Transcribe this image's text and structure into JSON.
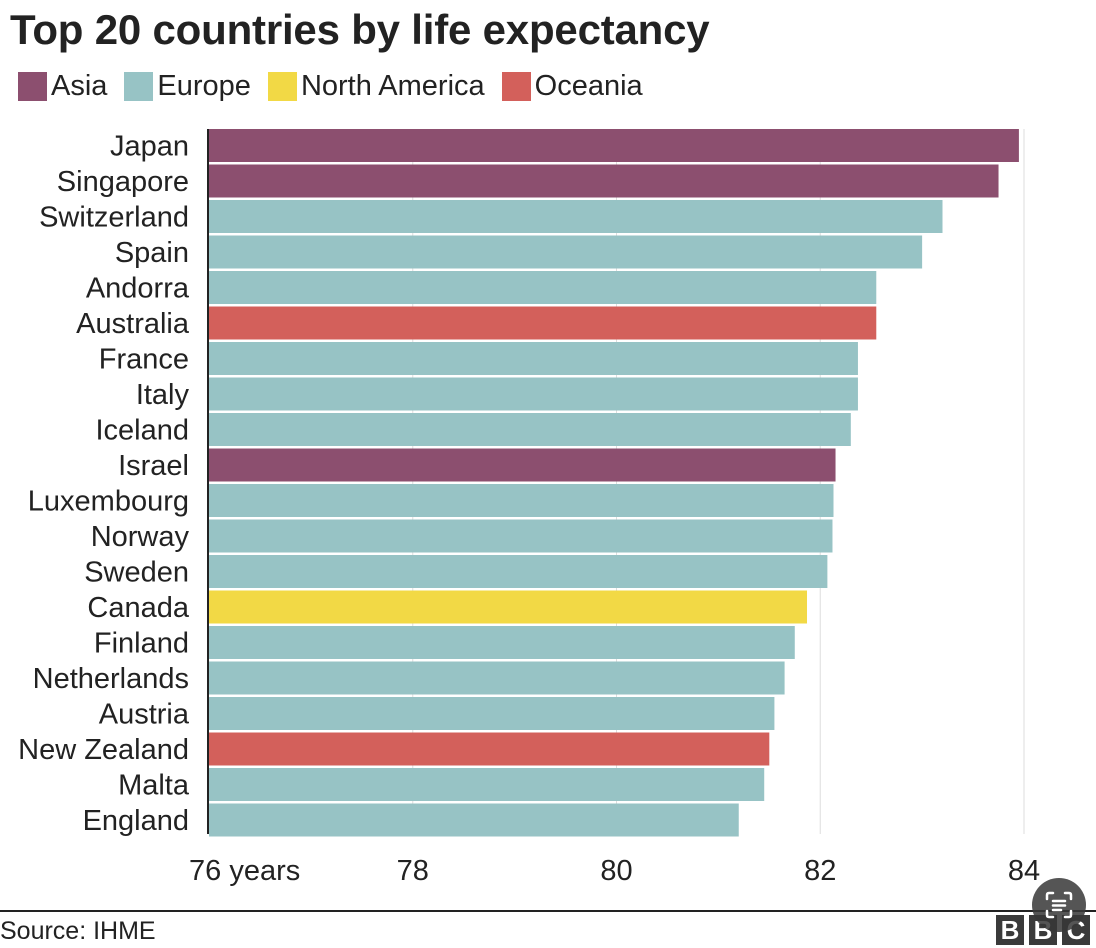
{
  "chart_data": {
    "type": "bar",
    "orientation": "horizontal",
    "title": "Top 20 countries by life expectancy",
    "legend": [
      {
        "name": "Asia",
        "color": "#8c4f6f"
      },
      {
        "name": "Europe",
        "color": "#97c3c5"
      },
      {
        "name": "North America",
        "color": "#f2d945"
      },
      {
        "name": "Oceania",
        "color": "#d3605b"
      }
    ],
    "categories": [
      "Japan",
      "Singapore",
      "Switzerland",
      "Spain",
      "Andorra",
      "Australia",
      "France",
      "Italy",
      "Iceland",
      "Israel",
      "Luxembourg",
      "Norway",
      "Sweden",
      "Canada",
      "Finland",
      "Netherlands",
      "Austria",
      "New Zealand",
      "Malta",
      "England"
    ],
    "values": [
      83.95,
      83.75,
      83.2,
      83.0,
      82.55,
      82.55,
      82.37,
      82.37,
      82.3,
      82.15,
      82.13,
      82.12,
      82.07,
      81.87,
      81.75,
      81.65,
      81.55,
      81.5,
      81.45,
      81.2
    ],
    "groups": [
      "Asia",
      "Asia",
      "Europe",
      "Europe",
      "Europe",
      "Oceania",
      "Europe",
      "Europe",
      "Europe",
      "Asia",
      "Europe",
      "Europe",
      "Europe",
      "North America",
      "Europe",
      "Europe",
      "Europe",
      "Oceania",
      "Europe",
      "Europe"
    ],
    "xlim": [
      76,
      84
    ],
    "xticks": [
      76,
      78,
      80,
      82,
      84
    ],
    "xtick_labels": [
      "76 years",
      "78",
      "80",
      "82",
      "84"
    ],
    "grid": true,
    "legend_position": "top-left"
  },
  "footer": {
    "source": "Source: IHME",
    "logo_letters": [
      "B",
      "B",
      "C"
    ]
  },
  "icons": {
    "scan_button": "image-scan-icon"
  }
}
